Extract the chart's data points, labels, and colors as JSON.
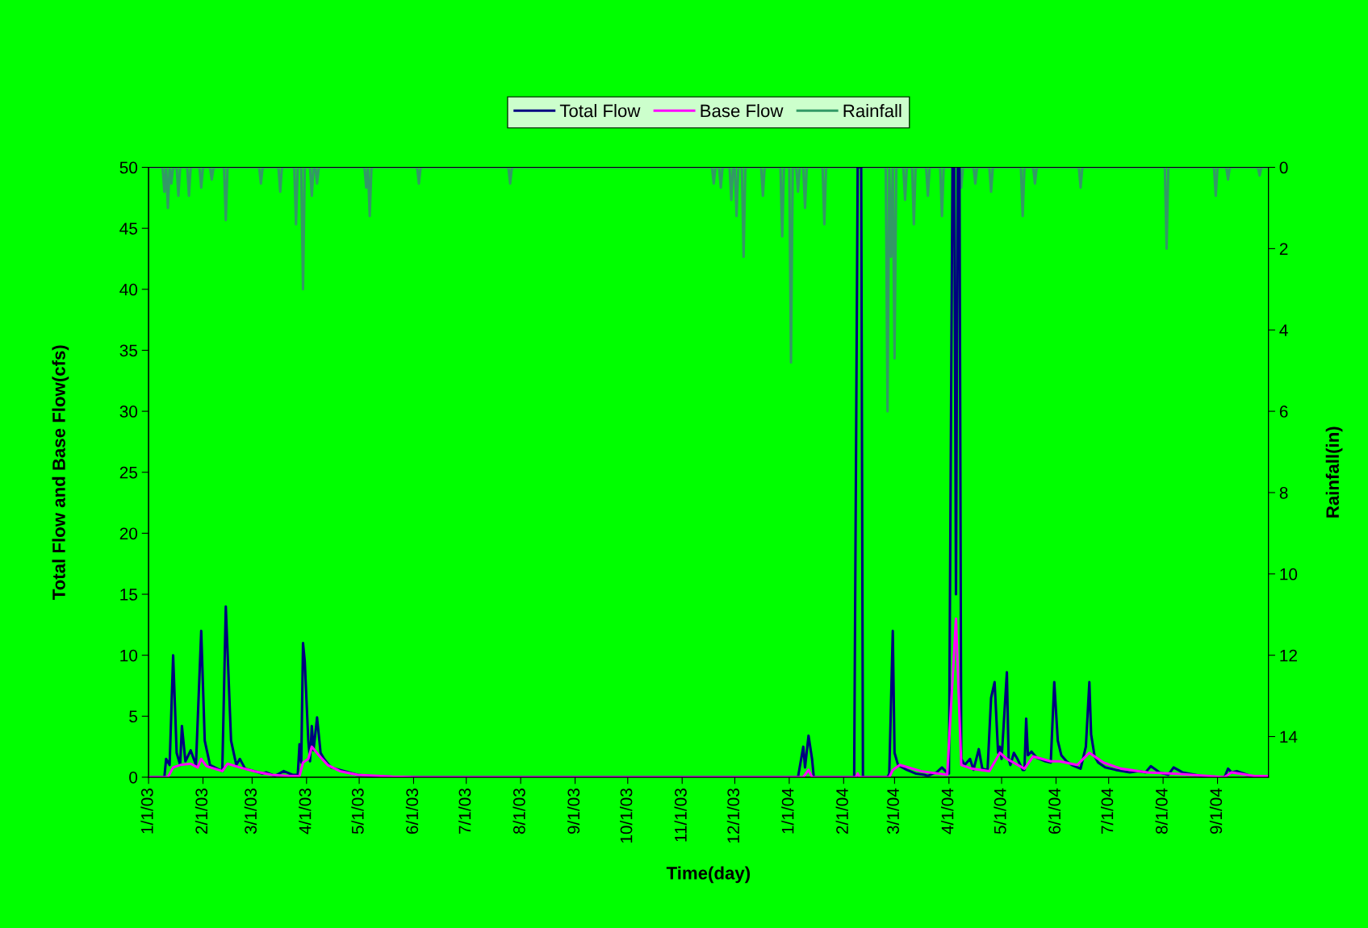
{
  "chart_data": {
    "type": "line",
    "xlabel": "Time(day)",
    "ylabel": "Total Flow and Base Flow(cfs)",
    "y2label": "Rainfall(in)",
    "xlim": [
      "2003-01-01",
      "2004-09-30"
    ],
    "xticks": [
      {
        "value": "2003-01-01",
        "label": "1/1/03"
      },
      {
        "value": "2003-02-01",
        "label": "2/1/03"
      },
      {
        "value": "2003-03-01",
        "label": "3/1/03"
      },
      {
        "value": "2003-04-01",
        "label": "4/1/03"
      },
      {
        "value": "2003-05-01",
        "label": "5/1/03"
      },
      {
        "value": "2003-06-01",
        "label": "6/1/03"
      },
      {
        "value": "2003-07-01",
        "label": "7/1/03"
      },
      {
        "value": "2003-08-01",
        "label": "8/1/03"
      },
      {
        "value": "2003-09-01",
        "label": "9/1/03"
      },
      {
        "value": "2003-10-01",
        "label": "10/1/03"
      },
      {
        "value": "2003-11-01",
        "label": "11/1/03"
      },
      {
        "value": "2003-12-01",
        "label": "12/1/03"
      },
      {
        "value": "2004-01-01",
        "label": "1/1/04"
      },
      {
        "value": "2004-02-01",
        "label": "2/1/04"
      },
      {
        "value": "2004-03-01",
        "label": "3/1/04"
      },
      {
        "value": "2004-04-01",
        "label": "4/1/04"
      },
      {
        "value": "2004-05-01",
        "label": "5/1/04"
      },
      {
        "value": "2004-06-01",
        "label": "6/1/04"
      },
      {
        "value": "2004-07-01",
        "label": "7/1/04"
      },
      {
        "value": "2004-08-01",
        "label": "8/1/04"
      },
      {
        "value": "2004-09-01",
        "label": "9/1/04"
      }
    ],
    "ylim": [
      0,
      50
    ],
    "yticks": [
      0,
      5,
      10,
      15,
      20,
      25,
      30,
      35,
      40,
      45,
      50
    ],
    "y2lim": [
      15,
      0
    ],
    "y2ticks": [
      0,
      2,
      4,
      6,
      8,
      10,
      12,
      14
    ],
    "grid": false,
    "legend": "top",
    "marker": "none",
    "line_style": "solid",
    "series": [
      {
        "name": "Total Flow",
        "color": "#000080",
        "x": [
          "2003-01-01",
          "2003-01-10",
          "2003-01-11",
          "2003-01-13",
          "2003-01-15",
          "2003-01-17",
          "2003-01-19",
          "2003-01-20",
          "2003-01-22",
          "2003-01-25",
          "2003-01-28",
          "2003-01-31",
          "2003-02-02",
          "2003-02-05",
          "2003-02-12",
          "2003-02-14",
          "2003-02-17",
          "2003-02-20",
          "2003-02-22",
          "2003-02-25",
          "2003-03-02",
          "2003-03-07",
          "2003-03-09",
          "2003-03-14",
          "2003-03-19",
          "2003-03-24",
          "2003-03-27",
          "2003-03-28",
          "2003-03-29",
          "2003-03-30",
          "2003-03-31",
          "2003-04-02",
          "2003-04-03",
          "2003-04-04",
          "2003-04-05",
          "2003-04-07",
          "2003-04-09",
          "2003-04-11",
          "2003-04-15",
          "2003-04-20",
          "2003-04-25",
          "2003-04-30",
          "2003-05-08",
          "2003-05-20",
          "2003-06-04",
          "2004-01-06",
          "2004-01-09",
          "2004-01-10",
          "2004-01-12",
          "2004-01-14",
          "2004-01-15",
          "2004-02-07",
          "2004-02-09",
          "2004-02-11",
          "2004-02-12",
          "2004-02-26",
          "2004-02-27",
          "2004-02-29",
          "2004-03-01",
          "2004-03-03",
          "2004-03-08",
          "2004-03-13",
          "2004-03-18",
          "2004-03-20",
          "2004-03-23",
          "2004-03-25",
          "2004-03-28",
          "2004-03-30",
          "2004-04-01",
          "2004-04-03",
          "2004-04-04",
          "2004-04-05",
          "2004-04-06",
          "2004-04-07",
          "2004-04-08",
          "2004-04-10",
          "2004-04-13",
          "2004-04-15",
          "2004-04-18",
          "2004-04-20",
          "2004-04-23",
          "2004-04-25",
          "2004-04-27",
          "2004-04-29",
          "2004-04-30",
          "2004-05-01",
          "2004-05-04",
          "2004-05-05",
          "2004-05-06",
          "2004-05-08",
          "2004-05-10",
          "2004-05-13",
          "2004-05-14",
          "2004-05-15",
          "2004-05-16",
          "2004-05-18",
          "2004-05-21",
          "2004-05-26",
          "2004-05-29",
          "2004-05-31",
          "2004-06-02",
          "2004-06-04",
          "2004-06-07",
          "2004-06-10",
          "2004-06-15",
          "2004-06-18",
          "2004-06-20",
          "2004-06-21",
          "2004-06-23",
          "2004-06-25",
          "2004-06-29",
          "2004-07-05",
          "2004-07-13",
          "2004-07-18",
          "2004-07-22",
          "2004-07-25",
          "2004-07-30",
          "2004-08-04",
          "2004-08-07",
          "2004-08-12",
          "2004-08-23",
          "2004-09-05",
          "2004-09-07",
          "2004-09-09",
          "2004-09-12",
          "2004-09-20",
          "2004-09-29"
        ],
        "values": [
          0,
          0,
          1.5,
          1,
          10,
          2,
          1,
          4.2,
          1.3,
          2.2,
          1,
          12,
          3,
          1,
          0.5,
          14,
          3,
          1,
          1.5,
          0.7,
          0.5,
          0.3,
          0.4,
          0.1,
          0.5,
          0.2,
          0.2,
          2.7,
          1.2,
          11,
          9.5,
          3,
          1.3,
          4.2,
          2.2,
          4.9,
          2,
          1.5,
          0.8,
          0.6,
          0.4,
          0.2,
          0.1,
          0.03,
          0,
          0,
          2.5,
          0.8,
          3.4,
          1.5,
          0,
          0,
          50,
          50,
          0,
          0,
          0.3,
          12,
          2,
          1,
          0.6,
          0.3,
          0.2,
          0.1,
          0.3,
          0.4,
          0.8,
          0.5,
          0.3,
          50,
          50,
          15,
          50,
          50,
          1.5,
          1,
          1.5,
          0.6,
          2.3,
          0.7,
          0.6,
          6.5,
          7.8,
          2,
          2.5,
          1.5,
          8.6,
          1.5,
          1,
          2,
          1.5,
          0.6,
          0.6,
          4.8,
          1.8,
          2.1,
          1.6,
          1.3,
          1.2,
          7.8,
          3,
          1.8,
          1.3,
          1,
          0.7,
          2.5,
          7.8,
          3.5,
          1.7,
          1.2,
          0.8,
          0.6,
          0.4,
          0.5,
          0.4,
          0.9,
          0.4,
          0.2,
          0.8,
          0.4,
          0.1,
          0,
          0.7,
          0.4,
          0.5,
          0.1,
          0.1
        ]
      },
      {
        "name": "Base Flow",
        "color": "#ff00ff",
        "x": [
          "2003-01-01",
          "2003-01-12",
          "2003-01-15",
          "2003-01-19",
          "2003-01-25",
          "2003-01-29",
          "2003-01-31",
          "2003-02-03",
          "2003-02-12",
          "2003-02-15",
          "2003-02-22",
          "2003-03-02",
          "2003-03-12",
          "2003-03-22",
          "2003-03-28",
          "2003-03-30",
          "2003-04-02",
          "2003-04-04",
          "2003-04-08",
          "2003-04-13",
          "2003-04-20",
          "2003-04-30",
          "2003-05-20",
          "2003-06-04",
          "2004-01-09",
          "2004-01-12",
          "2004-01-14",
          "2004-02-08",
          "2004-02-09",
          "2004-02-10",
          "2004-02-27",
          "2004-02-29",
          "2004-03-04",
          "2004-03-16",
          "2004-03-31",
          "2004-04-05",
          "2004-04-08",
          "2004-04-14",
          "2004-04-24",
          "2004-04-30",
          "2004-05-04",
          "2004-05-14",
          "2004-05-19",
          "2004-05-29",
          "2004-06-03",
          "2004-06-13",
          "2004-06-20",
          "2004-06-28",
          "2004-07-08",
          "2004-07-23",
          "2004-08-07",
          "2004-08-27",
          "2004-09-05",
          "2004-09-09",
          "2004-09-22",
          "2004-09-29"
        ],
        "values": [
          0,
          0,
          0.8,
          1,
          1.1,
          0.8,
          1.5,
          0.9,
          0.5,
          1.1,
          0.8,
          0.5,
          0.2,
          0.1,
          0.1,
          1.2,
          1.5,
          2.5,
          1.8,
          1,
          0.5,
          0.2,
          0.05,
          0,
          0,
          0.6,
          0,
          0,
          0.3,
          0,
          0,
          0.6,
          1,
          0.5,
          0.2,
          13,
          1,
          0.7,
          0.5,
          2,
          1.5,
          0.7,
          1.7,
          1.3,
          1.3,
          1,
          2,
          1.2,
          0.7,
          0.4,
          0.3,
          0.1,
          0,
          0.4,
          0.1,
          0.1
        ]
      },
      {
        "name": "Rainfall",
        "color": "#339966",
        "axis": "y2",
        "x": [
          "2003-01-01",
          "2003-01-09",
          "2003-01-10",
          "2003-01-11",
          "2003-01-12",
          "2003-01-13",
          "2003-01-14",
          "2003-01-15",
          "2003-01-17",
          "2003-01-18",
          "2003-01-19",
          "2003-01-23",
          "2003-01-24",
          "2003-01-25",
          "2003-01-30",
          "2003-01-31",
          "2003-02-01",
          "2003-02-05",
          "2003-02-06",
          "2003-02-07",
          "2003-02-13",
          "2003-02-14",
          "2003-02-15",
          "2003-03-05",
          "2003-03-06",
          "2003-03-07",
          "2003-03-16",
          "2003-03-17",
          "2003-03-18",
          "2003-03-25",
          "2003-03-26",
          "2003-03-27",
          "2003-03-29",
          "2003-03-30",
          "2003-03-31",
          "2003-04-03",
          "2003-04-04",
          "2003-04-05",
          "2003-04-06",
          "2003-04-07",
          "2003-04-08",
          "2003-05-04",
          "2003-05-05",
          "2003-05-06",
          "2003-05-07",
          "2003-05-08",
          "2003-06-03",
          "2003-06-04",
          "2003-06-05",
          "2003-07-25",
          "2003-07-26",
          "2003-07-27",
          "2003-11-18",
          "2003-11-19",
          "2003-11-20",
          "2003-11-22",
          "2003-11-23",
          "2003-11-24",
          "2003-11-28",
          "2003-11-29",
          "2003-11-30",
          "2003-12-01",
          "2003-12-02",
          "2003-12-03",
          "2003-12-05",
          "2003-12-06",
          "2003-12-07",
          "2003-12-16",
          "2003-12-17",
          "2003-12-18",
          "2003-12-27",
          "2003-12-28",
          "2003-12-29",
          "2004-01-01",
          "2004-01-02",
          "2004-01-03",
          "2004-01-05",
          "2004-01-06",
          "2004-01-07",
          "2004-01-09",
          "2004-01-10",
          "2004-01-11",
          "2004-01-20",
          "2004-01-21",
          "2004-01-22",
          "2004-02-25",
          "2004-02-26",
          "2004-02-27",
          "2004-02-28",
          "2004-02-29",
          "2004-03-01",
          "2004-03-02",
          "2004-03-06",
          "2004-03-07",
          "2004-03-08",
          "2004-03-11",
          "2004-03-12",
          "2004-03-13",
          "2004-03-19",
          "2004-03-20",
          "2004-03-21",
          "2004-03-27",
          "2004-03-28",
          "2004-03-29",
          "2004-04-07",
          "2004-04-08",
          "2004-04-09",
          "2004-04-15",
          "2004-04-16",
          "2004-04-17",
          "2004-04-24",
          "2004-04-25",
          "2004-04-26",
          "2004-05-12",
          "2004-05-13",
          "2004-05-14",
          "2004-05-19",
          "2004-05-20",
          "2004-05-21",
          "2004-06-14",
          "2004-06-15",
          "2004-06-16",
          "2004-08-02",
          "2004-08-03",
          "2004-08-04",
          "2004-08-30",
          "2004-08-31",
          "2004-09-01",
          "2004-09-06",
          "2004-09-07",
          "2004-09-08",
          "2004-09-24",
          "2004-09-25",
          "2004-09-26",
          "2004-09-30"
        ],
        "values": [
          0,
          0,
          0.6,
          0,
          1.0,
          0,
          0.4,
          0,
          0,
          0.7,
          0,
          0,
          0.7,
          0,
          0,
          0.5,
          0,
          0,
          0.3,
          0,
          0,
          1.3,
          0,
          0,
          0.4,
          0,
          0,
          0.6,
          0,
          0,
          1.4,
          0,
          0,
          3.0,
          0,
          0,
          0.7,
          0,
          0,
          0.4,
          0,
          0,
          0.5,
          0,
          1.2,
          0,
          0,
          0.4,
          0,
          0,
          0.4,
          0,
          0,
          0.4,
          0,
          0,
          0.5,
          0,
          0,
          0.8,
          0,
          0,
          1.2,
          0,
          0,
          2.2,
          0,
          0,
          0.7,
          0,
          0,
          1.7,
          0,
          0,
          4.8,
          0,
          0,
          0.6,
          0,
          0,
          1.0,
          0,
          0,
          1.4,
          0,
          0,
          6.0,
          0,
          2.2,
          0,
          4.7,
          0,
          0,
          0.8,
          0,
          0,
          1.4,
          0,
          0,
          0.7,
          0,
          0,
          1.2,
          0,
          0,
          0.5,
          0,
          0,
          0.4,
          0,
          0,
          0.6,
          0,
          0,
          1.2,
          0,
          0,
          0.4,
          0,
          0,
          0.5,
          0,
          0,
          2.0,
          0,
          0,
          0.7,
          0,
          0,
          0.3,
          0,
          0,
          0.2,
          0,
          0
        ]
      }
    ]
  }
}
